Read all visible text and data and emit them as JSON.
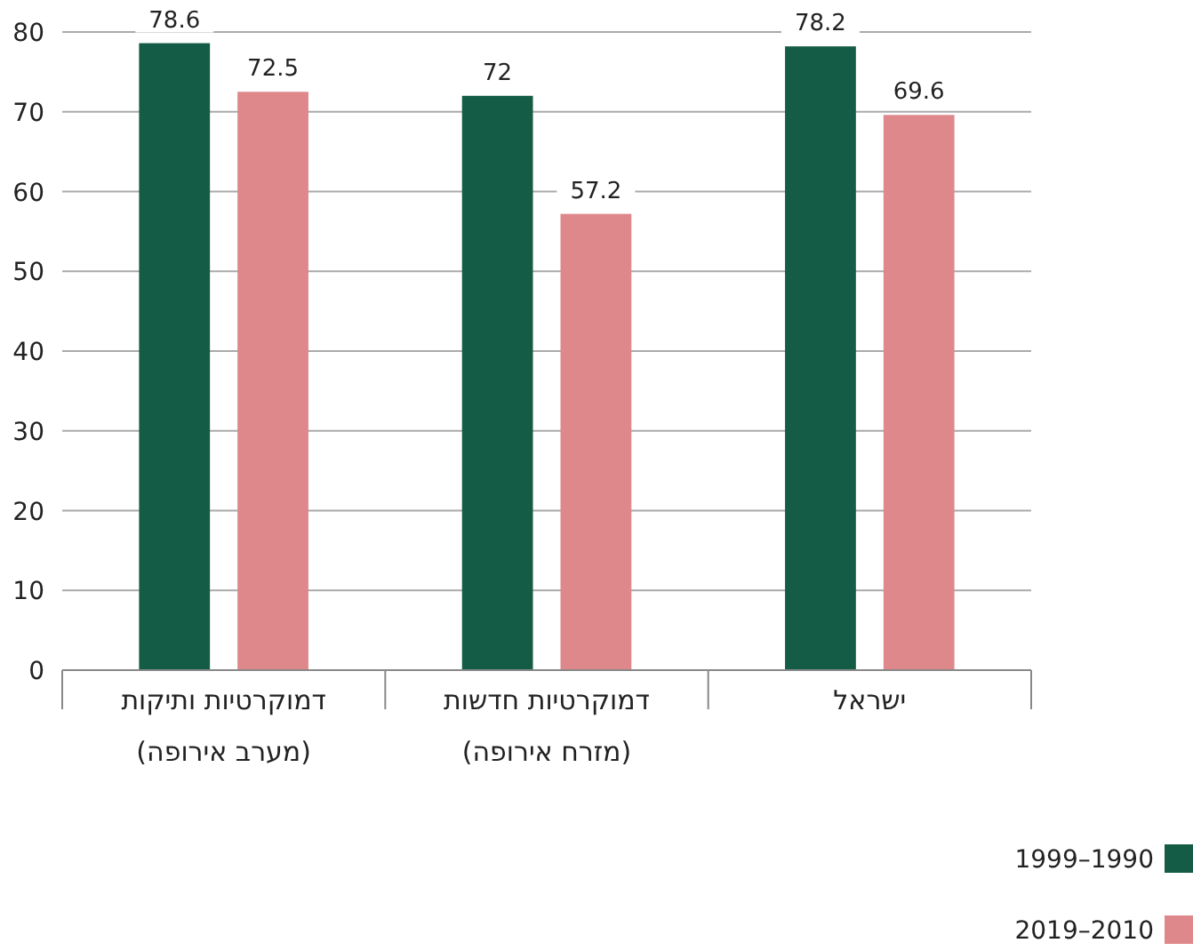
{
  "chart_data": {
    "type": "bar",
    "categories": [
      "דמוקרטיות ותיקות\n(מערב אירופה)",
      "דמוקרטיות חדשות\n(מזרח אירופה)",
      "ישראל"
    ],
    "series": [
      {
        "name": "1999–1990",
        "color": "#145c45",
        "values": [
          78.6,
          72,
          78.2
        ]
      },
      {
        "name": "2019–2010",
        "color": "#de888c",
        "values": [
          72.5,
          57.2,
          69.6
        ]
      }
    ],
    "ylim": [
      0,
      80
    ],
    "yticks": [
      0,
      10,
      20,
      30,
      40,
      50,
      60,
      70,
      80
    ],
    "grid": "y",
    "legend": "bottom right",
    "data_labels": true
  }
}
